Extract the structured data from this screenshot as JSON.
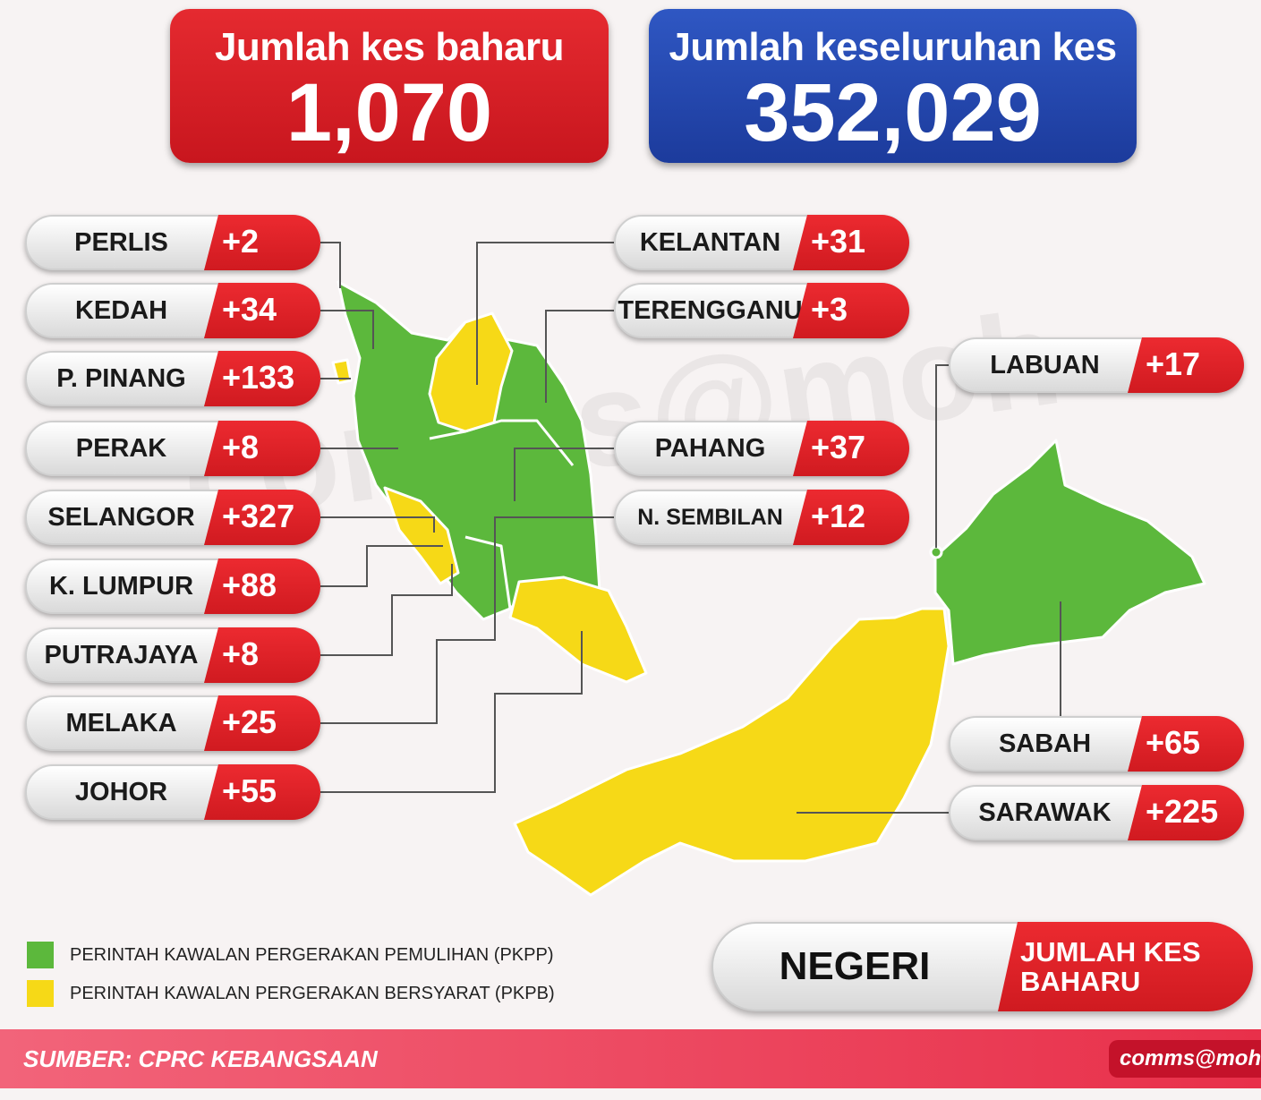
{
  "summary": [
    {
      "label": "Jumlah kes baharu",
      "value": "1,070"
    },
    {
      "label": "Jumlah keseluruhan kes",
      "value": "352,029"
    }
  ],
  "states": [
    {
      "name": "PERLIS",
      "cases": "+2"
    },
    {
      "name": "KEDAH",
      "cases": "+34"
    },
    {
      "name": "P. PINANG",
      "cases": "+133"
    },
    {
      "name": "PERAK",
      "cases": "+8"
    },
    {
      "name": "SELANGOR",
      "cases": "+327"
    },
    {
      "name": "K. LUMPUR",
      "cases": "+88"
    },
    {
      "name": "PUTRAJAYA",
      "cases": "+8"
    },
    {
      "name": "MELAKA",
      "cases": "+25"
    },
    {
      "name": "JOHOR",
      "cases": "+55"
    },
    {
      "name": "KELANTAN",
      "cases": "+31"
    },
    {
      "name": "TERENGGANU",
      "cases": "+3"
    },
    {
      "name": "PAHANG",
      "cases": "+37"
    },
    {
      "name": "N. SEMBILAN",
      "cases": "+12"
    },
    {
      "name": "LABUAN",
      "cases": "+17"
    },
    {
      "name": "SABAH",
      "cases": "+65"
    },
    {
      "name": "SARAWAK",
      "cases": "+225"
    }
  ],
  "legend": [
    {
      "label": "PERINTAH KAWALAN PERGERAKAN PEMULIHAN (PKPP)",
      "color": "#5cb83c"
    },
    {
      "label": "PERINTAH KAWALAN PERGERAKAN BERSYARAT (PKPB)",
      "color": "#f6d917"
    }
  ],
  "key": {
    "state": "NEGERI",
    "cases": "JUMLAH KES BAHARU"
  },
  "footer": {
    "source": "SUMBER: CPRC KEBANGSAAN",
    "credit": "comms@moh"
  }
}
